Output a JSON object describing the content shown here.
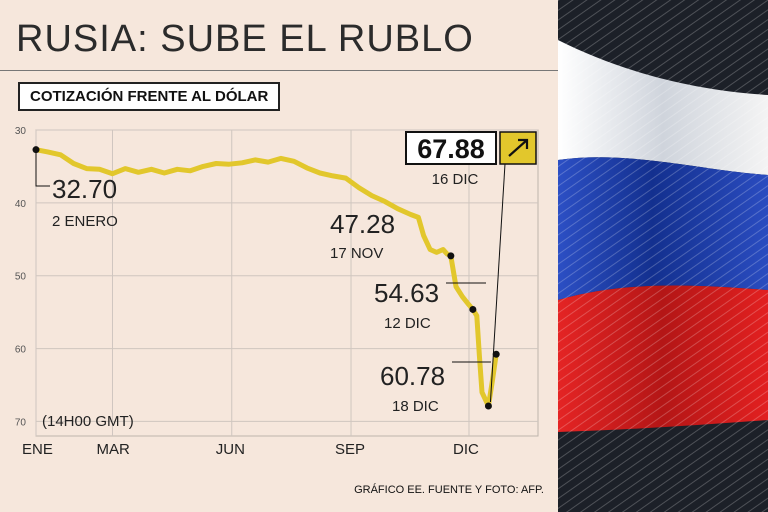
{
  "title": "RUSIA: SUBE EL RUBLO",
  "subtitle": "COTIZACIÓN FRENTE AL DÓLAR",
  "source": "GRÁFICO EE. FUENTE Y FOTO: AFP.",
  "colors": {
    "line": "#e2c72c",
    "background": "#f6e7dc",
    "flag_white": "#f2f2f2",
    "flag_blue": "#1d3fae",
    "flag_red": "#d81e1e"
  },
  "photo": {
    "icon": "russian-flag-photo"
  },
  "chart_data": {
    "type": "line",
    "title": "COTIZACIÓN FRENTE AL DÓLAR",
    "note": "(14H00 GMT)",
    "y_inverted": true,
    "ylim": [
      30,
      72
    ],
    "yticks": [
      30,
      40,
      50,
      60,
      70
    ],
    "xticks": [
      {
        "label": "ENE",
        "x": 1
      },
      {
        "label": "MAR",
        "x": 60
      },
      {
        "label": "JUN",
        "x": 152
      },
      {
        "label": "SEP",
        "x": 244
      },
      {
        "label": "DIC",
        "x": 335
      }
    ],
    "xlim": [
      1,
      365
    ],
    "grid": true,
    "series": [
      {
        "points": [
          [
            1,
            32.7
          ],
          [
            10,
            33.0
          ],
          [
            20,
            33.4
          ],
          [
            30,
            34.6
          ],
          [
            40,
            35.3
          ],
          [
            50,
            35.4
          ],
          [
            60,
            36.0
          ],
          [
            70,
            35.3
          ],
          [
            80,
            35.8
          ],
          [
            90,
            35.4
          ],
          [
            100,
            35.9
          ],
          [
            110,
            35.4
          ],
          [
            120,
            35.6
          ],
          [
            130,
            35.0
          ],
          [
            140,
            34.6
          ],
          [
            150,
            34.7
          ],
          [
            160,
            34.5
          ],
          [
            170,
            34.1
          ],
          [
            180,
            34.4
          ],
          [
            190,
            33.9
          ],
          [
            200,
            34.3
          ],
          [
            210,
            35.2
          ],
          [
            220,
            35.9
          ],
          [
            230,
            36.3
          ],
          [
            240,
            36.6
          ],
          [
            250,
            37.9
          ],
          [
            260,
            39.0
          ],
          [
            270,
            39.8
          ],
          [
            280,
            40.8
          ],
          [
            290,
            41.6
          ],
          [
            296,
            42.0
          ],
          [
            300,
            44.5
          ],
          [
            305,
            46.4
          ],
          [
            310,
            46.8
          ],
          [
            315,
            46.4
          ],
          [
            318,
            47.0
          ],
          [
            321,
            47.28
          ],
          [
            325,
            51.5
          ],
          [
            330,
            52.9
          ],
          [
            335,
            54.0
          ],
          [
            338,
            54.63
          ],
          [
            341,
            55.5
          ],
          [
            343,
            61.0
          ],
          [
            345,
            66.0
          ],
          [
            350,
            67.88
          ],
          [
            353,
            64.5
          ],
          [
            356,
            60.78
          ]
        ]
      }
    ],
    "annotations": [
      {
        "id": "jan2",
        "value": "32.70",
        "label": "2 ENERO",
        "x": 1,
        "y": 32.7
      },
      {
        "id": "nov17",
        "value": "47.28",
        "label": "17 NOV",
        "x": 321,
        "y": 47.28
      },
      {
        "id": "dec12",
        "value": "54.63",
        "label": "12 DIC",
        "x": 338,
        "y": 54.63
      },
      {
        "id": "dec16",
        "value": "67.88",
        "label": "16 DIC",
        "x": 350,
        "y": 67.88,
        "highlight": true
      },
      {
        "id": "dec18",
        "value": "60.78",
        "label": "18 DIC",
        "x": 356,
        "y": 60.78
      }
    ]
  }
}
